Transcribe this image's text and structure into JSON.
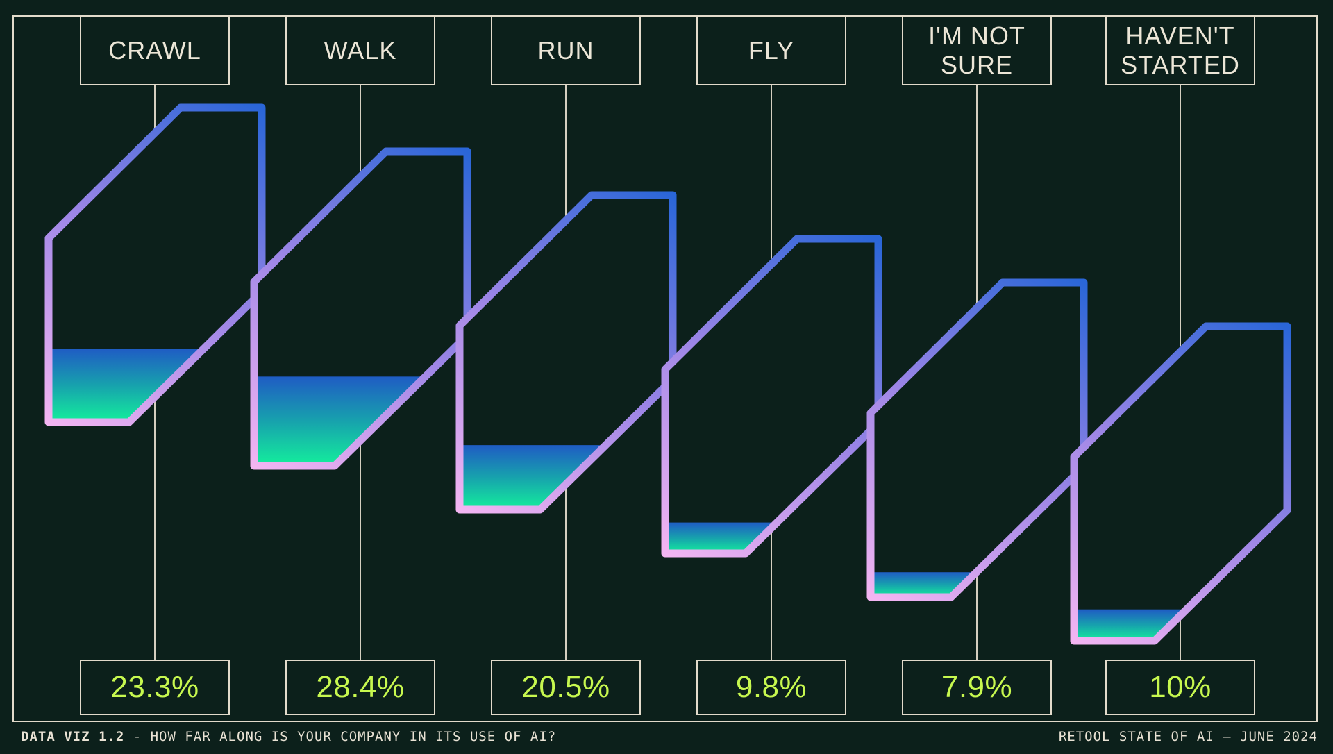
{
  "page": {
    "background": "#0c201b",
    "frame_color": "#e2dbcb"
  },
  "chart_data": {
    "type": "bar",
    "style": "slanted-tube-liquid-gauges",
    "title": "HOW FAR ALONG IS YOUR COMPANY IN ITS USE OF AI?",
    "unit": "%",
    "ylim": [
      0,
      100
    ],
    "categories": [
      "CRAWL",
      "WALK",
      "RUN",
      "FLY",
      "I'M NOT SURE",
      "HAVEN'T STARTED"
    ],
    "values": [
      23.3,
      28.4,
      20.5,
      9.8,
      7.9,
      10
    ],
    "value_labels": [
      "23.3%",
      "28.4%",
      "20.5%",
      "9.8%",
      "7.9%",
      "10%"
    ],
    "labels": [
      {
        "line1": "CRAWL",
        "line2": ""
      },
      {
        "line1": "WALK",
        "line2": ""
      },
      {
        "line1": "RUN",
        "line2": ""
      },
      {
        "line1": "FLY",
        "line2": ""
      },
      {
        "line1": "I'M NOT",
        "line2": "SURE"
      },
      {
        "line1": "HAVEN'T",
        "line2": "STARTED"
      }
    ],
    "colors": {
      "value_text": "#c7f84f",
      "label_text": "#ece6d7",
      "connector_line": "#d5cfc0",
      "tube_interior": "#0c201b",
      "stroke_gradient": [
        "#f3b5f2",
        "#9c85e6",
        "#2a66d8"
      ],
      "fill_gradient": [
        "#1f5cc4",
        "#17a2ad",
        "#14ef9c"
      ]
    }
  },
  "footer": {
    "left_bold": "DATA VIZ 1.2",
    "left_sep": " - ",
    "left_text": "HOW FAR ALONG IS YOUR COMPANY IN ITS USE OF AI?",
    "right_text": "RETOOL STATE OF AI — JUNE 2024"
  }
}
